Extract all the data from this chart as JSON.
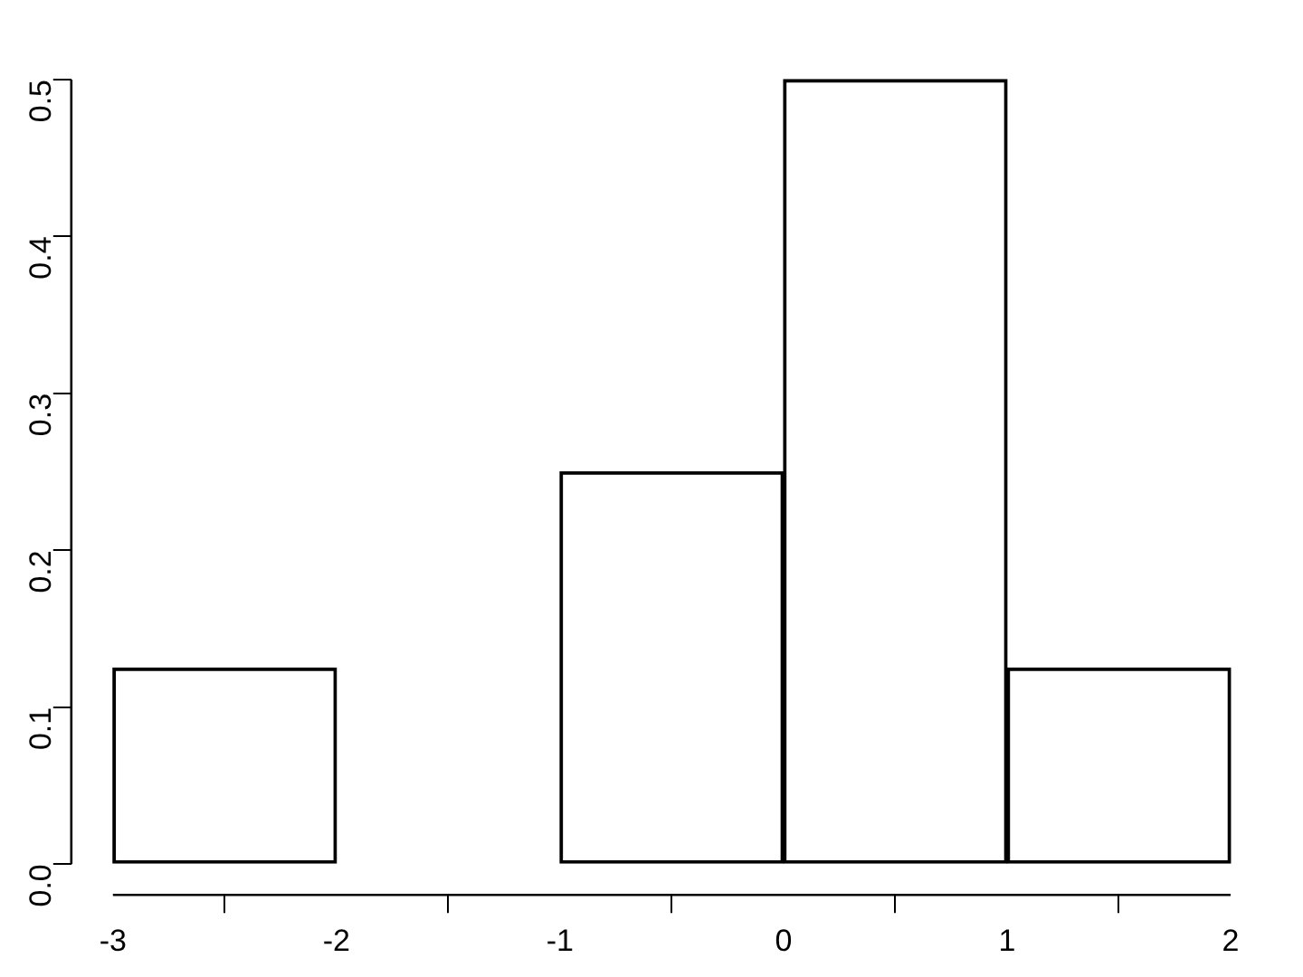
{
  "chart_data": {
    "type": "histogram",
    "bins": [
      -3,
      -2,
      -1,
      0,
      1,
      2
    ],
    "values": [
      0.125,
      0,
      0.25,
      0.5,
      0.125
    ],
    "color": "#000000",
    "xlim": [
      -3,
      2
    ],
    "xticks": [
      -3,
      -2,
      -1,
      0,
      1,
      2
    ],
    "ylim": [
      0,
      0.5
    ],
    "yticks": [
      {
        "value": 0,
        "label": "0.0"
      },
      {
        "value": 0.1,
        "label": "0.1"
      },
      {
        "value": 0.2,
        "label": "0.2"
      },
      {
        "value": 0.3,
        "label": "0.3"
      },
      {
        "value": 0.4,
        "label": "0.4"
      },
      {
        "value": 0.5,
        "label": "0.5"
      }
    ],
    "grid": false,
    "legend": false
  }
}
